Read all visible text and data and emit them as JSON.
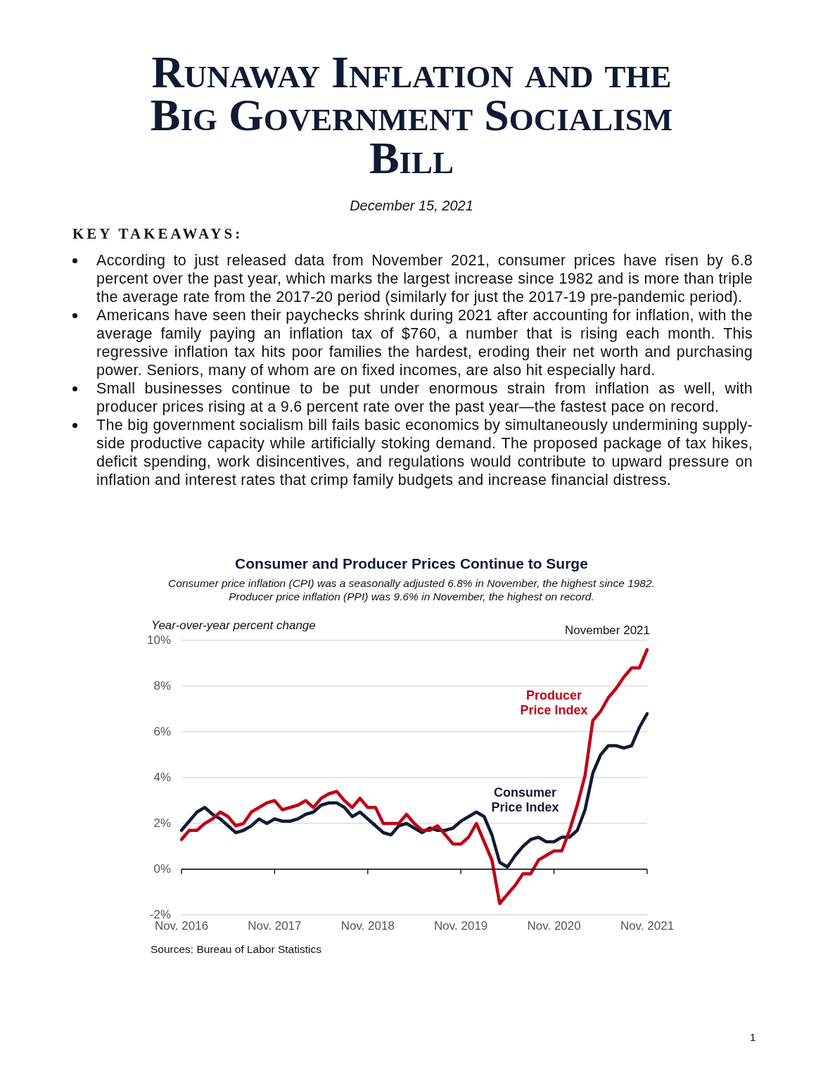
{
  "chart_data": {
    "type": "line",
    "title": "Consumer and Producer Prices Continue to Surge",
    "subtitle": "Consumer price inflation (CPI) was a seasonally adjusted 6.8% in November, the highest since 1982. Producer price inflation (PPI) was 9.6% in November, the highest on record.",
    "ylabel": "Year-over-year percent change",
    "categories": [
      "Nov. 2016",
      null,
      null,
      null,
      null,
      null,
      null,
      null,
      null,
      null,
      null,
      null,
      "Nov. 2017",
      null,
      null,
      null,
      null,
      null,
      null,
      null,
      null,
      null,
      null,
      null,
      "Nov. 2018",
      null,
      null,
      null,
      null,
      null,
      null,
      null,
      null,
      null,
      null,
      null,
      "Nov. 2019",
      null,
      null,
      null,
      null,
      null,
      null,
      null,
      null,
      null,
      null,
      null,
      "Nov. 2020",
      null,
      null,
      null,
      null,
      null,
      null,
      null,
      null,
      null,
      null,
      null,
      "Nov. 2021"
    ],
    "series": [
      {
        "name": "Consumer Price Index",
        "color": "#0f1b33",
        "values": [
          1.7,
          2.1,
          2.5,
          2.7,
          2.4,
          2.2,
          1.9,
          1.6,
          1.7,
          1.9,
          2.2,
          2.0,
          2.2,
          2.1,
          2.1,
          2.2,
          2.4,
          2.5,
          2.8,
          2.9,
          2.9,
          2.7,
          2.3,
          2.5,
          2.2,
          1.9,
          1.6,
          1.5,
          1.9,
          2.0,
          1.8,
          1.6,
          1.8,
          1.7,
          1.7,
          1.8,
          2.1,
          2.3,
          2.5,
          2.3,
          1.5,
          0.3,
          0.1,
          0.6,
          1.0,
          1.3,
          1.4,
          1.2,
          1.2,
          1.4,
          1.4,
          1.7,
          2.6,
          4.2,
          5.0,
          5.4,
          5.4,
          5.3,
          5.4,
          6.2,
          6.8
        ]
      },
      {
        "name": "Producer Price Index",
        "color": "#c00015",
        "values": [
          1.3,
          1.7,
          1.7,
          2.0,
          2.2,
          2.5,
          2.3,
          1.9,
          2.0,
          2.5,
          2.7,
          2.9,
          3.0,
          2.6,
          2.7,
          2.8,
          3.0,
          2.7,
          3.1,
          3.3,
          3.4,
          3.0,
          2.7,
          3.1,
          2.7,
          2.7,
          2.0,
          2.0,
          2.0,
          2.4,
          2.0,
          1.7,
          1.7,
          1.9,
          1.5,
          1.1,
          1.1,
          1.4,
          2.0,
          1.2,
          0.4,
          -1.5,
          -1.1,
          -0.7,
          -0.2,
          -0.2,
          0.4,
          0.6,
          0.8,
          0.8,
          1.7,
          2.8,
          4.1,
          6.5,
          6.9,
          7.5,
          7.9,
          8.4,
          8.8,
          8.8,
          9.6
        ]
      }
    ],
    "ylim": [
      -2,
      10
    ],
    "yticks": [
      {
        "value": -2,
        "label": "-2%"
      },
      {
        "value": 0,
        "label": "0%"
      },
      {
        "value": 2,
        "label": "2%"
      },
      {
        "value": 4,
        "label": "4%"
      },
      {
        "value": 6,
        "label": "6%"
      },
      {
        "value": 8,
        "label": "8%"
      },
      {
        "value": 10,
        "label": "10%"
      }
    ],
    "grid": "y",
    "legend": false,
    "marker": "none",
    "line_style": "solid",
    "ref_lines": [
      {
        "axis": "y",
        "value": 0,
        "color": "#000000"
      }
    ],
    "annotations": [
      "Runaway Inflation and the Big Government Socialism Bill",
      "December 15, 2021",
      "KEY TAKEAWAYS:",
      "According to just released data from November 2021, consumer prices have risen by 6.8 percent over the past year, which marks the largest increase since 1982 and is more than triple the average rate from the 2017-20 period (similarly for just the 2017-19 pre-pandemic period).",
      "Americans have seen their paychecks shrink during 2021 after accounting for inflation, with the average family paying an inflation tax of $760, a number that is rising each month. This regressive inflation tax hits poor families the hardest, eroding their net worth and purchasing power. Seniors, many of whom are on fixed incomes, are also hit especially hard.",
      "Small businesses continue to be put under enormous strain from inflation as well, with producer prices rising at a 9.6 percent rate over the past year—the fastest pace on record.",
      "The big government socialism bill fails basic economics by simultaneously undermining supply-side productive capacity while artificially stoking demand. The proposed package of tax hikes, deficit spending, work disincentives, and regulations would contribute to upward pressure on inflation and interest rates that crimp family budgets and increase financial distress.",
      "November 2021",
      "Sources: Bureau of Labor Statistics",
      "1"
    ]
  }
}
